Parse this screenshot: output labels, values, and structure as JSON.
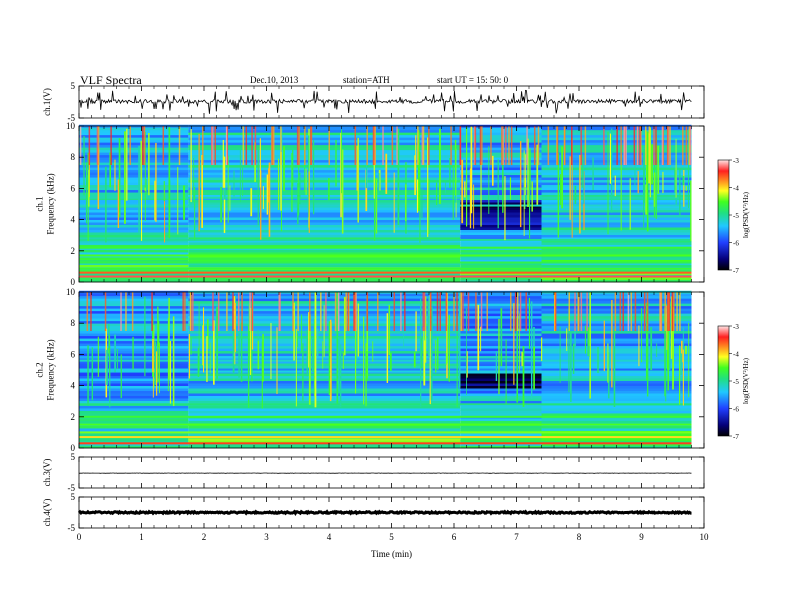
{
  "header": {
    "title": "VLF  Spectra",
    "date": "Dec.10, 2013",
    "station": "station=ATH",
    "start": "start  UT  =    15: 50: 0"
  },
  "chart_data": {
    "type": "heatmap",
    "xlabel": "Time  (min)",
    "xlim": [
      0,
      10
    ],
    "xticks": [
      "0",
      "1",
      "2",
      "3",
      "4",
      "5",
      "6",
      "7",
      "8",
      "9",
      "10"
    ],
    "data_end_min": 9.8,
    "panels": [
      {
        "id": "ch1_waveform",
        "kind": "waveform",
        "ylabel": "ch.1(V)",
        "ylim": [
          -5,
          5
        ],
        "yticks": [
          "5",
          "-5"
        ],
        "baseline_v": 0.2,
        "noise_amp_v": 0.6,
        "spike_amp_v": 3.5
      },
      {
        "id": "ch1_spectrogram",
        "kind": "spectrogram",
        "ylabel": [
          "ch.1",
          "Frequency  (kHz)"
        ],
        "ylim_khz": [
          0,
          10
        ],
        "yticks": [
          "0",
          "2",
          "4",
          "6",
          "8",
          "10"
        ],
        "colorbar": {
          "label": "log(PSD(V²/Hz)",
          "range": [
            -7,
            -3
          ],
          "ticks": [
            "-3",
            "-4",
            "-5",
            "-6",
            "-7"
          ]
        },
        "segments_min": [
          {
            "t": [
              0,
              1.75
            ],
            "noise_floor_log": -5.4
          },
          {
            "t": [
              1.75,
              6.1
            ],
            "noise_floor_log": -5.3
          },
          {
            "t": [
              6.1,
              7.4
            ],
            "noise_floor_log": -5.5,
            "quiet_band_khz": [
              3.3,
              5.2
            ]
          },
          {
            "t": [
              7.4,
              9.8
            ],
            "noise_floor_log": -5.35
          }
        ],
        "bands_khz_log": [
          {
            "f": 0.35,
            "v": -3.3
          },
          {
            "f": 0.6,
            "v": -3.6
          },
          {
            "f": 0.85,
            "v": -4.6
          },
          {
            "f": 1.25,
            "v": -4.7
          },
          {
            "f": 1.7,
            "v": -4.5
          },
          {
            "f": 2.2,
            "v": -4.6
          },
          {
            "f": 2.7,
            "v": -5.0
          },
          {
            "f": 4.9,
            "v": -5.2
          },
          {
            "f": 5.4,
            "v": -5.1
          }
        ],
        "sferic_level_log": -3.8
      },
      {
        "id": "ch2_spectrogram",
        "kind": "spectrogram",
        "ylabel": [
          "ch.2",
          "Frequency  (kHz)"
        ],
        "ylim_khz": [
          0,
          10
        ],
        "yticks": [
          "0",
          "2",
          "4",
          "6",
          "8",
          "10"
        ],
        "colorbar": {
          "label": "log(PSD(V²/Hz)",
          "range": [
            -7,
            -3
          ],
          "ticks": [
            "-3",
            "-4",
            "-5",
            "-6",
            "-7"
          ]
        },
        "segments_min": [
          {
            "t": [
              0,
              1.75
            ],
            "noise_floor_log": -5.6
          },
          {
            "t": [
              1.75,
              6.1
            ],
            "noise_floor_log": -5.4
          },
          {
            "t": [
              6.1,
              7.4
            ],
            "noise_floor_log": -5.6,
            "quiet_band_khz": [
              3.8,
              4.8
            ]
          },
          {
            "t": [
              7.4,
              9.8
            ],
            "noise_floor_log": -5.45
          }
        ],
        "bands_khz_log": [
          {
            "f": 0.3,
            "v": -3.5
          },
          {
            "f": 0.7,
            "v": -4.0
          },
          {
            "f": 1.0,
            "v": -4.4
          },
          {
            "f": 1.5,
            "v": -4.5
          },
          {
            "f": 2.0,
            "v": -4.6
          },
          {
            "f": 2.8,
            "v": -4.9
          },
          {
            "f": 4.9,
            "v": -5.3
          },
          {
            "f": 5.6,
            "v": -5.2
          }
        ],
        "sferic_level_log": -3.9
      },
      {
        "id": "ch3_waveform",
        "kind": "waveform",
        "ylabel": "ch.3(V)",
        "ylim": [
          -5,
          5
        ],
        "yticks": [
          "5",
          "-5"
        ],
        "baseline_v": -0.2,
        "noise_amp_v": 0.05,
        "spike_amp_v": 0
      },
      {
        "id": "ch4_waveform",
        "kind": "waveform",
        "ylabel": "ch.4(V)",
        "ylim": [
          -5,
          5
        ],
        "yticks": [
          "5",
          "-5"
        ],
        "baseline_v": 0.0,
        "noise_amp_v": 0.25,
        "spike_amp_v": 0
      }
    ]
  }
}
